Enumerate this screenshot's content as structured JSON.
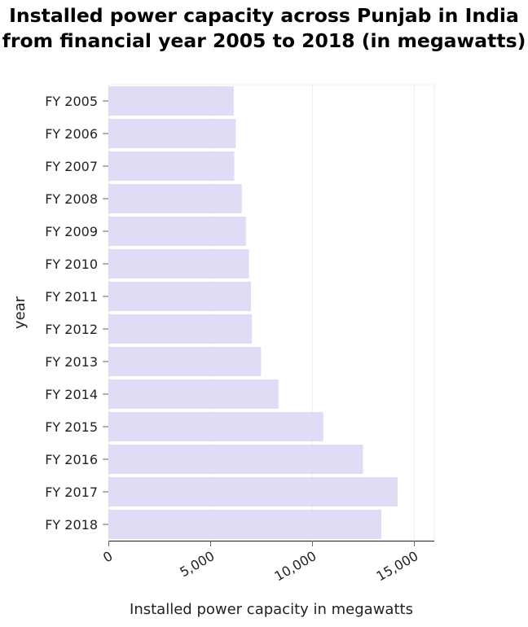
{
  "chart_data": {
    "type": "bar",
    "orientation": "horizontal",
    "title": "Installed power capacity across Punjab in India from financial year 2005 to 2018 (in megawatts)",
    "xlabel": "Installed power capacity in megawatts",
    "ylabel": "year",
    "categories": [
      "FY 2005",
      "FY 2006",
      "FY 2007",
      "FY 2008",
      "FY 2009",
      "FY 2010",
      "FY 2011",
      "FY 2012",
      "FY 2013",
      "FY 2014",
      "FY 2015",
      "FY 2016",
      "FY 2017",
      "FY 2018"
    ],
    "values": [
      6150,
      6250,
      6180,
      6550,
      6750,
      6900,
      7000,
      7050,
      7500,
      8350,
      10550,
      12500,
      14200,
      13400
    ],
    "xlim": [
      0,
      16000
    ],
    "xticks": [
      0,
      5000,
      10000,
      15000
    ],
    "xtick_labels": [
      "0",
      "5,000",
      "10,000",
      "15,000"
    ],
    "grid": true,
    "bar_color": "#e0dcf5"
  }
}
